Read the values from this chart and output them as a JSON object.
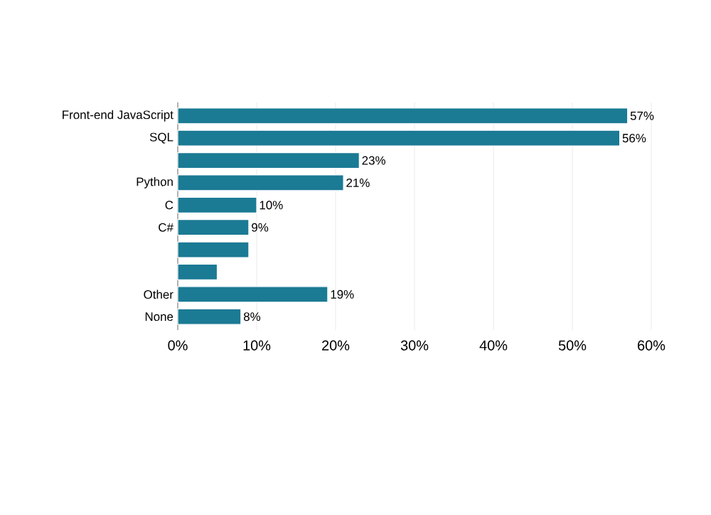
{
  "chart_data": {
    "type": "bar",
    "orientation": "horizontal",
    "categories": [
      "Front-end JavaScript",
      "SQL",
      null,
      "Python",
      "C",
      "C#",
      null,
      null,
      "Other",
      "None"
    ],
    "values": [
      57,
      56,
      23,
      21,
      10,
      9,
      9,
      5,
      19,
      8
    ],
    "value_labels": [
      "57%",
      "56%",
      "23%",
      "21%",
      "10%",
      "9%",
      null,
      null,
      "19%",
      "8%"
    ],
    "color": "#1b7a94",
    "xlim": [
      0,
      60
    ],
    "xticks": [
      {
        "value": 0,
        "label": "0%"
      },
      {
        "value": 10,
        "label": "10%"
      },
      {
        "value": 20,
        "label": "20%"
      },
      {
        "value": 30,
        "label": "30%"
      },
      {
        "value": 40,
        "label": "40%"
      },
      {
        "value": 50,
        "label": "50%"
      },
      {
        "value": 60,
        "label": "60%"
      }
    ],
    "grid": "x"
  }
}
